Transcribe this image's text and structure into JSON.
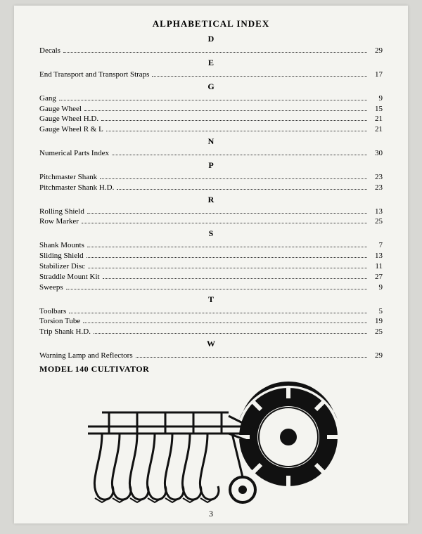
{
  "title": "ALPHABETICAL INDEX",
  "page_number": "3",
  "model_label": "MODEL 140 CULTIVATOR",
  "sections": [
    {
      "letter": "D",
      "entries": [
        {
          "label": "Decals",
          "page": "29"
        }
      ]
    },
    {
      "letter": "E",
      "entries": [
        {
          "label": "End Transport and Transport Straps",
          "page": "17"
        }
      ]
    },
    {
      "letter": "G",
      "entries": [
        {
          "label": "Gang",
          "page": "9"
        },
        {
          "label": "Gauge Wheel",
          "page": "15"
        },
        {
          "label": "Gauge Wheel H.D.",
          "page": "21"
        },
        {
          "label": "Gauge Wheel  R & L",
          "page": "21"
        }
      ]
    },
    {
      "letter": "N",
      "entries": [
        {
          "label": "Numerical Parts Index",
          "page": "30"
        }
      ]
    },
    {
      "letter": "P",
      "entries": [
        {
          "label": "Pitchmaster Shank",
          "page": "23"
        },
        {
          "label": "Pitchmaster Shank H.D.",
          "page": "23"
        }
      ]
    },
    {
      "letter": "R",
      "entries": [
        {
          "label": "Rolling Shield",
          "page": "13"
        },
        {
          "label": "Row Marker",
          "page": "25"
        }
      ]
    },
    {
      "letter": "S",
      "entries": [
        {
          "label": "Shank Mounts",
          "page": "7"
        },
        {
          "label": "Sliding Shield",
          "page": "13"
        },
        {
          "label": "Stabilizer  Disc",
          "page": "11"
        },
        {
          "label": "Straddle Mount Kit",
          "page": "27"
        },
        {
          "label": "Sweeps",
          "page": "9"
        }
      ]
    },
    {
      "letter": "T",
      "entries": [
        {
          "label": "Toolbars",
          "page": "5"
        },
        {
          "label": "Torsion Tube",
          "page": "19"
        },
        {
          "label": "Trip Shank H.D.",
          "page": "25"
        }
      ]
    },
    {
      "letter": "W",
      "entries": [
        {
          "label": "Warning Lamp and Reflectors",
          "page": "29"
        }
      ]
    }
  ],
  "colors": {
    "page_bg": "#f4f4f0",
    "outer_bg": "#d8d8d4",
    "text": "#1a1a1a",
    "dot": "#333333"
  },
  "typography": {
    "title_fontsize": 13,
    "letter_fontsize": 12,
    "entry_fontsize": 11,
    "model_fontsize": 12,
    "font_family": "Times New Roman"
  }
}
